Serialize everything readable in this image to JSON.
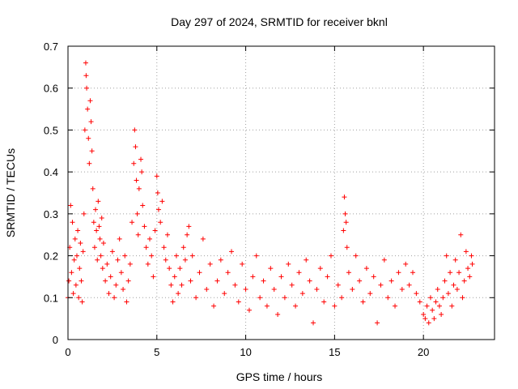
{
  "chart_data": {
    "type": "scatter",
    "title": "Day 297 of 2024, SRMTID for receiver bknl",
    "xlabel": "GPS time / hours",
    "ylabel": "SRMTID / TECUs",
    "xlim": [
      0,
      24
    ],
    "ylim": [
      0,
      0.7
    ],
    "xticks": [
      0,
      5,
      10,
      15,
      20
    ],
    "yticks": [
      0,
      0.1,
      0.2,
      0.3,
      0.4,
      0.5,
      0.6,
      0.7
    ],
    "xtick_labels": [
      "0",
      "5",
      "10",
      "15",
      "20"
    ],
    "ytick_labels": [
      "0",
      "0.1",
      "0.2",
      "0.3",
      "0.4",
      "0.5",
      "0.6",
      "0.7"
    ],
    "grid": true,
    "marker": "plus",
    "color": "#ff0000",
    "series": [
      {
        "name": "SRMTID",
        "points": [
          [
            0.0,
            0.1
          ],
          [
            0.05,
            0.14
          ],
          [
            0.1,
            0.22
          ],
          [
            0.15,
            0.32
          ],
          [
            0.2,
            0.16
          ],
          [
            0.25,
            0.28
          ],
          [
            0.3,
            0.11
          ],
          [
            0.35,
            0.19
          ],
          [
            0.4,
            0.24
          ],
          [
            0.45,
            0.13
          ],
          [
            0.5,
            0.2
          ],
          [
            0.55,
            0.26
          ],
          [
            0.6,
            0.1
          ],
          [
            0.65,
            0.17
          ],
          [
            0.7,
            0.23
          ],
          [
            0.75,
            0.14
          ],
          [
            0.8,
            0.09
          ],
          [
            0.85,
            0.21
          ],
          [
            0.9,
            0.3
          ],
          [
            0.95,
            0.5
          ],
          [
            1.0,
            0.66
          ],
          [
            1.02,
            0.63
          ],
          [
            1.05,
            0.6
          ],
          [
            1.1,
            0.55
          ],
          [
            1.15,
            0.48
          ],
          [
            1.2,
            0.42
          ],
          [
            1.25,
            0.57
          ],
          [
            1.3,
            0.52
          ],
          [
            1.35,
            0.45
          ],
          [
            1.4,
            0.36
          ],
          [
            1.45,
            0.28
          ],
          [
            1.5,
            0.22
          ],
          [
            1.55,
            0.31
          ],
          [
            1.6,
            0.26
          ],
          [
            1.65,
            0.19
          ],
          [
            1.7,
            0.33
          ],
          [
            1.75,
            0.27
          ],
          [
            1.8,
            0.24
          ],
          [
            1.85,
            0.2
          ],
          [
            1.9,
            0.29
          ],
          [
            1.95,
            0.17
          ],
          [
            2.0,
            0.23
          ],
          [
            2.1,
            0.14
          ],
          [
            2.2,
            0.18
          ],
          [
            2.3,
            0.11
          ],
          [
            2.4,
            0.15
          ],
          [
            2.5,
            0.21
          ],
          [
            2.6,
            0.1
          ],
          [
            2.7,
            0.13
          ],
          [
            2.8,
            0.19
          ],
          [
            2.9,
            0.24
          ],
          [
            3.0,
            0.16
          ],
          [
            3.1,
            0.12
          ],
          [
            3.2,
            0.2
          ],
          [
            3.3,
            0.09
          ],
          [
            3.4,
            0.14
          ],
          [
            3.5,
            0.18
          ],
          [
            3.6,
            0.28
          ],
          [
            3.7,
            0.42
          ],
          [
            3.75,
            0.5
          ],
          [
            3.8,
            0.46
          ],
          [
            3.85,
            0.38
          ],
          [
            3.9,
            0.3
          ],
          [
            3.95,
            0.25
          ],
          [
            4.0,
            0.36
          ],
          [
            4.1,
            0.43
          ],
          [
            4.15,
            0.4
          ],
          [
            4.2,
            0.32
          ],
          [
            4.3,
            0.27
          ],
          [
            4.4,
            0.22
          ],
          [
            4.5,
            0.18
          ],
          [
            4.6,
            0.24
          ],
          [
            4.7,
            0.2
          ],
          [
            4.8,
            0.15
          ],
          [
            4.9,
            0.26
          ],
          [
            5.0,
            0.39
          ],
          [
            5.05,
            0.35
          ],
          [
            5.1,
            0.31
          ],
          [
            5.2,
            0.28
          ],
          [
            5.3,
            0.33
          ],
          [
            5.4,
            0.22
          ],
          [
            5.5,
            0.19
          ],
          [
            5.6,
            0.25
          ],
          [
            5.7,
            0.17
          ],
          [
            5.8,
            0.13
          ],
          [
            5.9,
            0.09
          ],
          [
            6.0,
            0.15
          ],
          [
            6.1,
            0.2
          ],
          [
            6.2,
            0.11
          ],
          [
            6.3,
            0.17
          ],
          [
            6.4,
            0.13
          ],
          [
            6.5,
            0.22
          ],
          [
            6.6,
            0.19
          ],
          [
            6.7,
            0.25
          ],
          [
            6.8,
            0.27
          ],
          [
            6.9,
            0.14
          ],
          [
            7.0,
            0.2
          ],
          [
            7.2,
            0.1
          ],
          [
            7.4,
            0.16
          ],
          [
            7.6,
            0.24
          ],
          [
            7.8,
            0.12
          ],
          [
            8.0,
            0.18
          ],
          [
            8.2,
            0.08
          ],
          [
            8.4,
            0.14
          ],
          [
            8.6,
            0.19
          ],
          [
            8.8,
            0.11
          ],
          [
            9.0,
            0.16
          ],
          [
            9.2,
            0.21
          ],
          [
            9.4,
            0.13
          ],
          [
            9.6,
            0.09
          ],
          [
            9.8,
            0.18
          ],
          [
            10.0,
            0.12
          ],
          [
            10.2,
            0.07
          ],
          [
            10.4,
            0.15
          ],
          [
            10.6,
            0.2
          ],
          [
            10.8,
            0.1
          ],
          [
            11.0,
            0.14
          ],
          [
            11.2,
            0.08
          ],
          [
            11.4,
            0.17
          ],
          [
            11.6,
            0.12
          ],
          [
            11.8,
            0.06
          ],
          [
            12.0,
            0.15
          ],
          [
            12.2,
            0.1
          ],
          [
            12.4,
            0.18
          ],
          [
            12.6,
            0.13
          ],
          [
            12.8,
            0.08
          ],
          [
            13.0,
            0.16
          ],
          [
            13.2,
            0.11
          ],
          [
            13.4,
            0.19
          ],
          [
            13.6,
            0.14
          ],
          [
            13.8,
            0.04
          ],
          [
            14.0,
            0.12
          ],
          [
            14.2,
            0.17
          ],
          [
            14.4,
            0.09
          ],
          [
            14.6,
            0.15
          ],
          [
            14.8,
            0.2
          ],
          [
            15.0,
            0.08
          ],
          [
            15.2,
            0.13
          ],
          [
            15.4,
            0.1
          ],
          [
            15.5,
            0.26
          ],
          [
            15.55,
            0.34
          ],
          [
            15.6,
            0.3
          ],
          [
            15.65,
            0.28
          ],
          [
            15.7,
            0.22
          ],
          [
            15.8,
            0.16
          ],
          [
            16.0,
            0.12
          ],
          [
            16.2,
            0.2
          ],
          [
            16.4,
            0.14
          ],
          [
            16.6,
            0.09
          ],
          [
            16.8,
            0.17
          ],
          [
            17.0,
            0.11
          ],
          [
            17.2,
            0.15
          ],
          [
            17.4,
            0.04
          ],
          [
            17.6,
            0.13
          ],
          [
            17.8,
            0.19
          ],
          [
            18.0,
            0.1
          ],
          [
            18.2,
            0.14
          ],
          [
            18.4,
            0.08
          ],
          [
            18.6,
            0.16
          ],
          [
            18.8,
            0.12
          ],
          [
            19.0,
            0.18
          ],
          [
            19.2,
            0.13
          ],
          [
            19.4,
            0.16
          ],
          [
            19.6,
            0.11
          ],
          [
            19.8,
            0.09
          ],
          [
            20.0,
            0.06
          ],
          [
            20.1,
            0.05
          ],
          [
            20.2,
            0.08
          ],
          [
            20.3,
            0.04
          ],
          [
            20.4,
            0.1
          ],
          [
            20.5,
            0.07
          ],
          [
            20.6,
            0.05
          ],
          [
            20.7,
            0.09
          ],
          [
            20.8,
            0.12
          ],
          [
            20.9,
            0.08
          ],
          [
            21.0,
            0.06
          ],
          [
            21.1,
            0.1
          ],
          [
            21.2,
            0.14
          ],
          [
            21.3,
            0.2
          ],
          [
            21.4,
            0.11
          ],
          [
            21.5,
            0.16
          ],
          [
            21.6,
            0.08
          ],
          [
            21.7,
            0.13
          ],
          [
            21.8,
            0.19
          ],
          [
            21.9,
            0.12
          ],
          [
            22.0,
            0.16
          ],
          [
            22.1,
            0.25
          ],
          [
            22.2,
            0.1
          ],
          [
            22.3,
            0.14
          ],
          [
            22.4,
            0.21
          ],
          [
            22.5,
            0.17
          ],
          [
            22.6,
            0.15
          ],
          [
            22.7,
            0.2
          ],
          [
            22.75,
            0.18
          ]
        ]
      }
    ]
  }
}
